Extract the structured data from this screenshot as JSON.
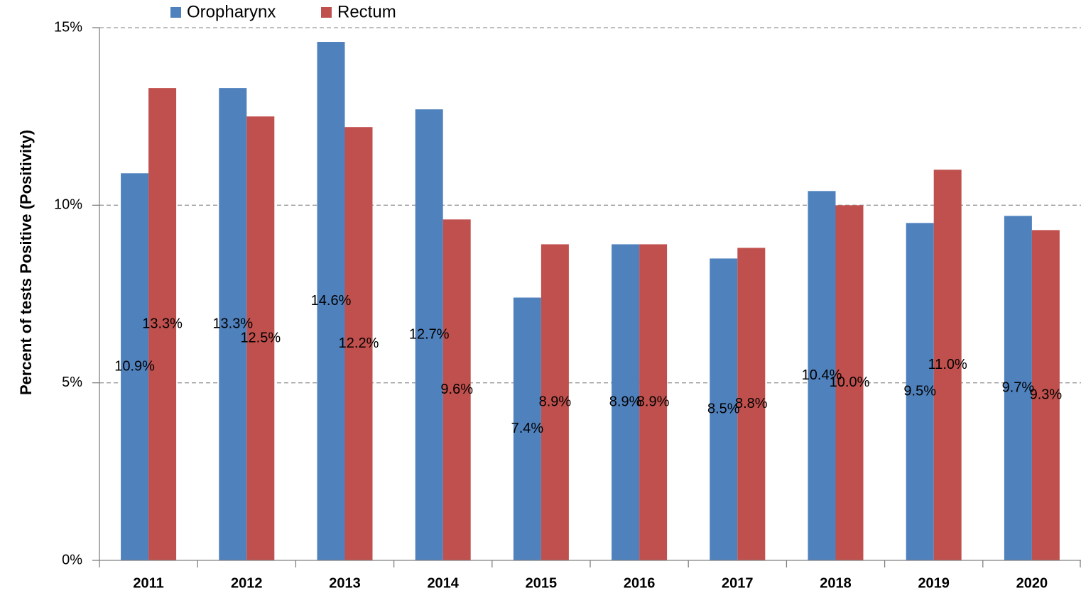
{
  "chart_data": {
    "type": "bar",
    "y_label": "Percent of tests Positive (Positivity)",
    "categories": [
      "2011",
      "2012",
      "2013",
      "2014",
      "2015",
      "2016",
      "2017",
      "2018",
      "2019",
      "2020"
    ],
    "series": [
      {
        "name": "Oropharynx",
        "color": "#4f81bd",
        "values": [
          10.9,
          13.3,
          14.6,
          12.7,
          7.4,
          8.9,
          8.5,
          10.4,
          9.5,
          9.7
        ],
        "value_labels": [
          "10.9%",
          "13.3%",
          "14.6%",
          "12.7%",
          "7.4%",
          "8.9%",
          "8.5%",
          "10.4%",
          "9.5%",
          "9.7%"
        ]
      },
      {
        "name": "Rectum",
        "color": "#c0504d",
        "values": [
          13.3,
          12.5,
          12.2,
          9.6,
          8.9,
          8.9,
          8.8,
          10.0,
          11.0,
          9.3
        ],
        "value_labels": [
          "13.3%",
          "12.5%",
          "12.2%",
          "9.6%",
          "8.9%",
          "8.9%",
          "8.8%",
          "10.0%",
          "11.0%",
          "9.3%"
        ]
      }
    ],
    "ylim": [
      0,
      15
    ],
    "yticks": [
      {
        "value": 0,
        "label": "0%"
      },
      {
        "value": 5,
        "label": "5%"
      },
      {
        "value": 10,
        "label": "10%"
      },
      {
        "value": 15,
        "label": "15%"
      }
    ],
    "grid": true,
    "legend": "top"
  }
}
